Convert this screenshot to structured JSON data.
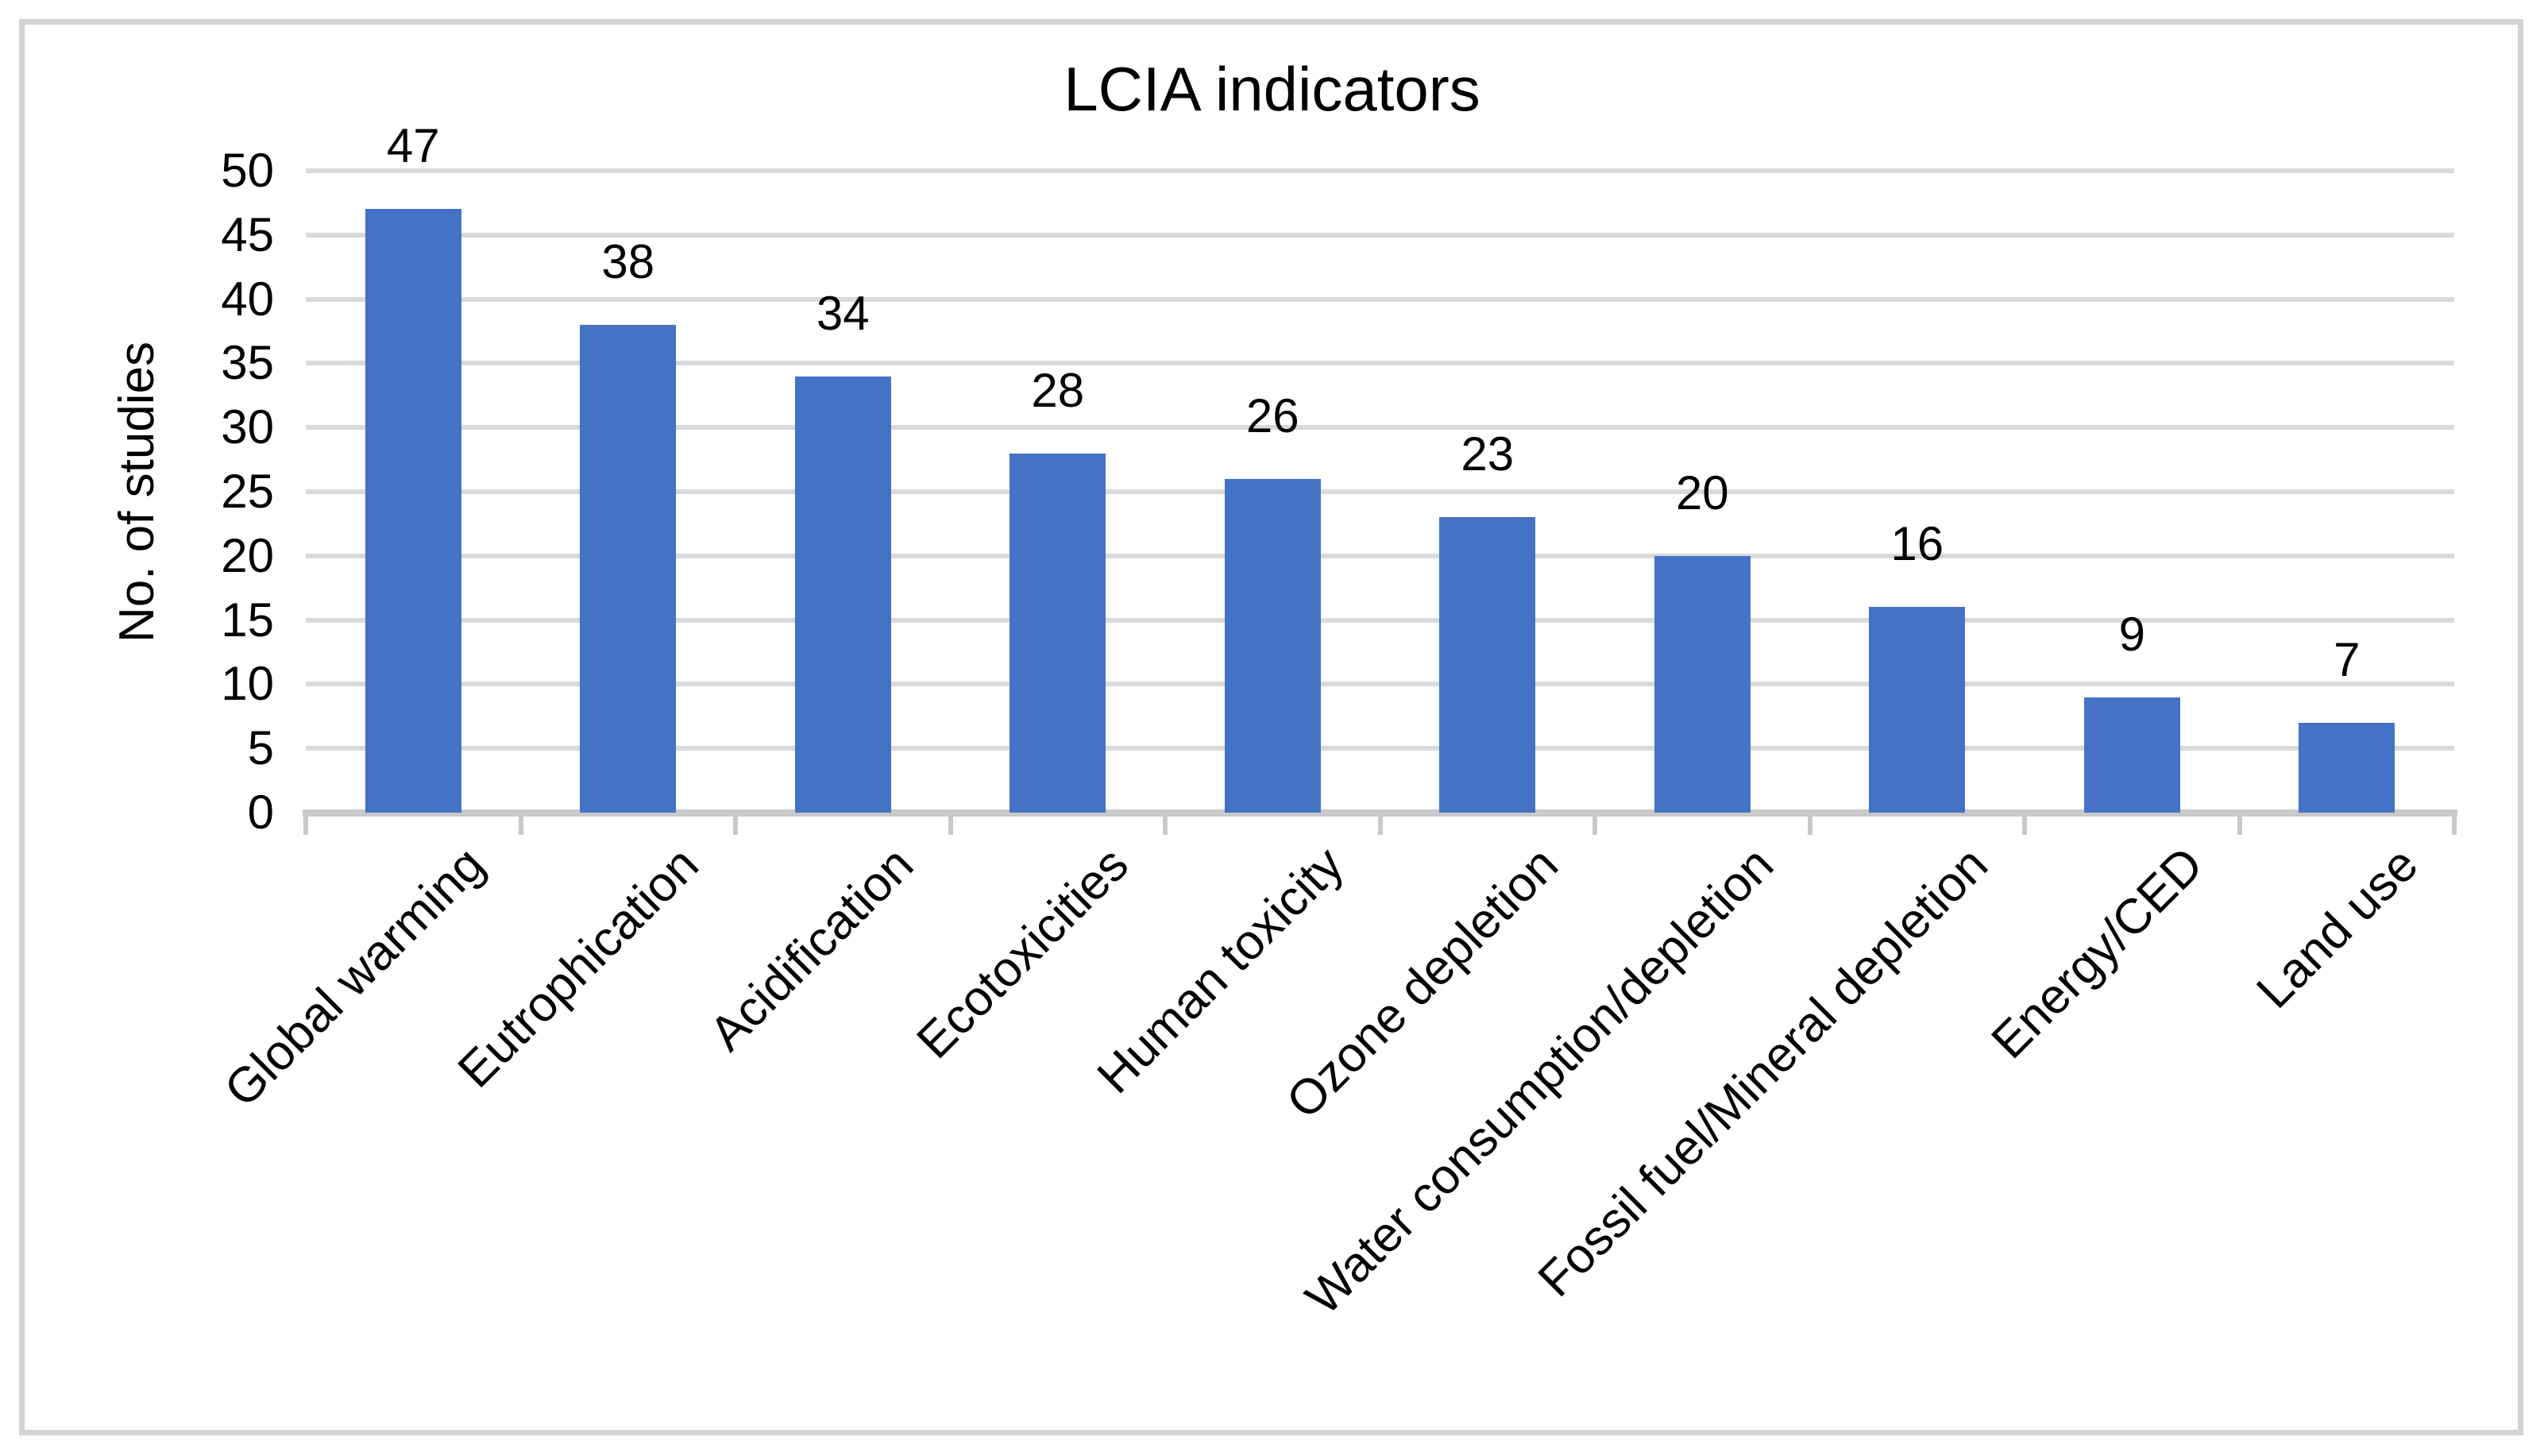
{
  "chart_data": {
    "type": "bar",
    "title": "LCIA indicators",
    "ylabel": "No. of studies",
    "xlabel": "",
    "categories": [
      "Global warming",
      "Eutrophication",
      "Acidification",
      "Ecotoxicities",
      "Human toxicity",
      "Ozone depletion",
      "Water consumption/depletion",
      "Fossil fuel/Mineral depletion",
      "Energy/CED",
      "Land use"
    ],
    "values": [
      47,
      38,
      34,
      28,
      26,
      23,
      20,
      16,
      9,
      7
    ],
    "data_labels": [
      47,
      38,
      34,
      28,
      26,
      23,
      20,
      16,
      9,
      7
    ],
    "ylim": [
      0,
      50
    ],
    "ytick_step": 5,
    "ytick_labels": [
      "0",
      "5",
      "10",
      "15",
      "20",
      "25",
      "30",
      "35",
      "40",
      "45",
      "50"
    ],
    "grid": "horizontal",
    "legend_position": "none",
    "category_label_rotation_deg": 45,
    "colors": {
      "bar": "#4472C4",
      "gridline": "#D9D9D9",
      "axis_line": "#C9C9C9",
      "frame_border": "#D2D2D2",
      "text": "#000000",
      "background": "#FFFFFF"
    }
  }
}
